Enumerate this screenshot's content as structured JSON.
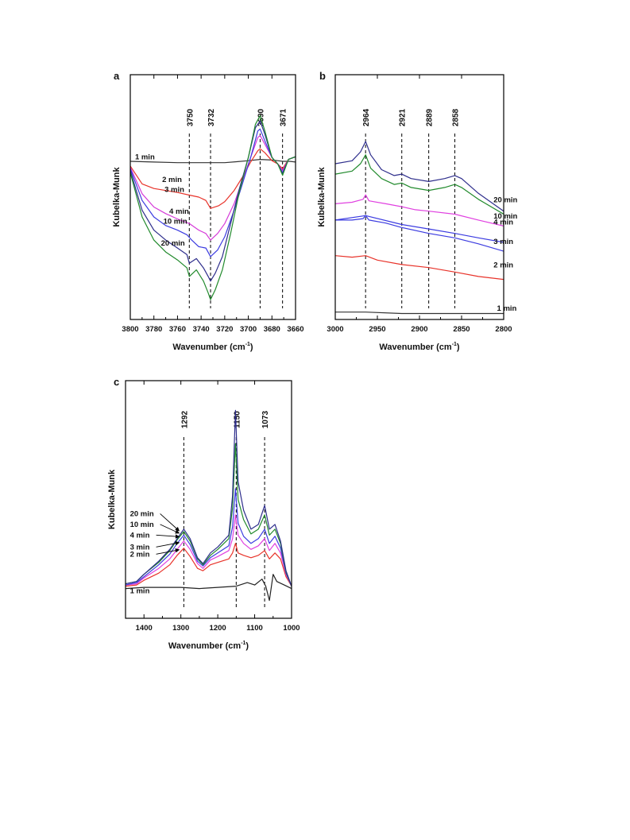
{
  "chart_data": [
    {
      "panel": "a",
      "type": "line",
      "xlabel": "Wavenumber (cm",
      "xlabel_sup": "-1",
      "xlabel_end": ")",
      "ylabel": "Kubelka-Munk",
      "xlim": [
        3800,
        3660
      ],
      "xticks": [
        3800,
        3780,
        3760,
        3740,
        3720,
        3700,
        3680,
        3660
      ],
      "yticks_shown": false,
      "ref_lines": [
        {
          "x": 3750,
          "label": "3750"
        },
        {
          "x": 3732,
          "label": "3732"
        },
        {
          "x": 3690,
          "label": "3690"
        },
        {
          "x": 3671,
          "label": "3671"
        }
      ],
      "series": [
        {
          "name": "1 min",
          "color": "#333333",
          "label_pos": [
            3796,
            0.02
          ],
          "x": [
            3800,
            3780,
            3760,
            3740,
            3720,
            3710,
            3700,
            3690,
            3680,
            3675,
            3671,
            3665,
            3660
          ],
          "y": [
            -0.01,
            -0.02,
            -0.03,
            -0.03,
            -0.03,
            -0.015,
            0.0,
            0.02,
            0.01,
            0.0,
            -0.01,
            -0.01,
            -0.02
          ]
        },
        {
          "name": "2 min",
          "color": "#e8332a",
          "label_pos": [
            3773,
            -0.32
          ],
          "x": [
            3800,
            3790,
            3780,
            3770,
            3760,
            3750,
            3742,
            3736,
            3732,
            3725,
            3720,
            3712,
            3705,
            3698,
            3692,
            3690,
            3686,
            3680,
            3675,
            3671,
            3666,
            3660
          ],
          "y": [
            -0.08,
            -0.35,
            -0.42,
            -0.45,
            -0.48,
            -0.52,
            -0.55,
            -0.6,
            -0.72,
            -0.68,
            -0.62,
            -0.45,
            -0.25,
            -0.02,
            0.15,
            0.18,
            0.12,
            0.0,
            -0.05,
            -0.12,
            0.02,
            0.06
          ]
        },
        {
          "name": "3 min",
          "color": "#d53ad8",
          "label_pos": [
            3771,
            -0.47
          ],
          "x": [
            3800,
            3790,
            3780,
            3770,
            3760,
            3750,
            3742,
            3736,
            3732,
            3726,
            3720,
            3712,
            3705,
            3698,
            3692,
            3690,
            3686,
            3680,
            3675,
            3671,
            3666,
            3660
          ],
          "y": [
            -0.1,
            -0.5,
            -0.7,
            -0.8,
            -0.88,
            -0.95,
            -1.05,
            -1.1,
            -1.2,
            -1.1,
            -0.95,
            -0.65,
            -0.3,
            0.05,
            0.35,
            0.38,
            0.25,
            0.05,
            -0.05,
            -0.15,
            0.02,
            0.06
          ]
        },
        {
          "name": "4 min",
          "color": "#3b3be0",
          "label_pos": [
            3767,
            -0.8
          ],
          "x": [
            3800,
            3790,
            3780,
            3770,
            3760,
            3752,
            3748,
            3742,
            3736,
            3732,
            3726,
            3720,
            3712,
            3705,
            3698,
            3692,
            3690,
            3686,
            3680,
            3675,
            3671,
            3666,
            3660
          ],
          "y": [
            -0.12,
            -0.6,
            -0.85,
            -0.98,
            -1.05,
            -1.12,
            -1.2,
            -1.3,
            -1.32,
            -1.45,
            -1.35,
            -1.15,
            -0.75,
            -0.35,
            0.05,
            0.45,
            0.48,
            0.3,
            0.05,
            -0.05,
            -0.18,
            0.02,
            0.06
          ]
        },
        {
          "name": "10 min",
          "color": "#2e2e8c",
          "label_pos": [
            3772,
            -0.95
          ],
          "x": [
            3800,
            3790,
            3780,
            3770,
            3760,
            3752,
            3750,
            3744,
            3738,
            3734,
            3732,
            3728,
            3722,
            3715,
            3708,
            3700,
            3694,
            3690,
            3686,
            3680,
            3675,
            3671,
            3666,
            3660
          ],
          "y": [
            -0.15,
            -0.75,
            -1.05,
            -1.2,
            -1.32,
            -1.42,
            -1.55,
            -1.48,
            -1.62,
            -1.75,
            -1.82,
            -1.7,
            -1.45,
            -0.95,
            -0.45,
            0.05,
            0.5,
            0.6,
            0.4,
            0.05,
            -0.05,
            -0.2,
            0.02,
            0.06
          ]
        },
        {
          "name": "20 min",
          "color": "#218a2c",
          "label_pos": [
            3774,
            -1.28
          ],
          "x": [
            3800,
            3790,
            3780,
            3770,
            3760,
            3752,
            3750,
            3744,
            3738,
            3734,
            3732,
            3728,
            3722,
            3715,
            3708,
            3700,
            3694,
            3690,
            3686,
            3680,
            3675,
            3671,
            3666,
            3660
          ],
          "y": [
            -0.18,
            -0.85,
            -1.2,
            -1.38,
            -1.5,
            -1.62,
            -1.75,
            -1.65,
            -1.82,
            -2.0,
            -2.1,
            -1.95,
            -1.65,
            -1.1,
            -0.5,
            0.05,
            0.55,
            0.68,
            0.45,
            0.05,
            -0.05,
            -0.22,
            0.02,
            0.06
          ]
        }
      ]
    },
    {
      "panel": "b",
      "type": "line",
      "xlabel": "Wavenumber (cm",
      "xlabel_sup": "-1",
      "xlabel_end": ")",
      "ylabel": "Kubelka-Munk",
      "xlim": [
        3000,
        2800
      ],
      "xticks": [
        3000,
        2950,
        2900,
        2850,
        2800
      ],
      "yticks_shown": false,
      "ref_lines": [
        {
          "x": 2964,
          "label": "2964"
        },
        {
          "x": 2921,
          "label": "2921"
        },
        {
          "x": 2889,
          "label": "2889"
        },
        {
          "x": 2858,
          "label": "2858"
        }
      ],
      "series": [
        {
          "name": "1 min",
          "color": "#333333",
          "label_pos": [
            2808,
            0.01
          ],
          "x": [
            3000,
            2964,
            2921,
            2889,
            2858,
            2800
          ],
          "y": [
            0.0,
            0.0,
            -0.01,
            -0.01,
            -0.01,
            -0.01
          ]
        },
        {
          "name": "2 min",
          "color": "#e8332a",
          "label_pos": [
            2812,
            0.3
          ],
          "x": [
            3000,
            2980,
            2964,
            2950,
            2921,
            2889,
            2858,
            2830,
            2800
          ],
          "y": [
            0.38,
            0.37,
            0.38,
            0.35,
            0.32,
            0.3,
            0.27,
            0.24,
            0.22
          ]
        },
        {
          "name": "3 min",
          "color": "#3b3be0",
          "label_pos": [
            2812,
            0.46
          ],
          "x": [
            3000,
            2980,
            2967,
            2964,
            2960,
            2940,
            2921,
            2889,
            2858,
            2830,
            2800
          ],
          "y": [
            0.62,
            0.62,
            0.63,
            0.65,
            0.62,
            0.6,
            0.57,
            0.53,
            0.5,
            0.46,
            0.41
          ]
        },
        {
          "name": "4 min",
          "color": "#3b3be0",
          "label_pos": [
            2812,
            0.59
          ],
          "x": [
            3000,
            2964,
            2921,
            2889,
            2858,
            2830,
            2800
          ],
          "y": [
            0.62,
            0.65,
            0.59,
            0.56,
            0.53,
            0.5,
            0.47
          ]
        },
        {
          "name": "10 min",
          "color": "#e040e0",
          "label_pos": [
            2812,
            0.63
          ],
          "x": [
            3000,
            2980,
            2967,
            2964,
            2960,
            2940,
            2921,
            2905,
            2889,
            2858,
            2830,
            2800
          ],
          "y": [
            0.73,
            0.74,
            0.76,
            0.79,
            0.75,
            0.73,
            0.71,
            0.69,
            0.68,
            0.66,
            0.62,
            0.58
          ]
        },
        {
          "name": "20 min",
          "color": "#2e2e8c",
          "label_pos": [
            2812,
            0.74
          ],
          "x": [
            3000,
            2980,
            2970,
            2964,
            2958,
            2945,
            2930,
            2921,
            2910,
            2889,
            2870,
            2858,
            2850,
            2830,
            2800
          ],
          "y": [
            1.0,
            1.02,
            1.08,
            1.15,
            1.06,
            0.96,
            0.92,
            0.93,
            0.9,
            0.88,
            0.9,
            0.92,
            0.9,
            0.8,
            0.68
          ]
        },
        {
          "name": "",
          "color": "#218a2c",
          "x": [
            3000,
            2980,
            2970,
            2964,
            2958,
            2945,
            2930,
            2921,
            2910,
            2889,
            2870,
            2858,
            2850,
            2830,
            2800
          ],
          "y": [
            0.93,
            0.95,
            1.0,
            1.06,
            0.97,
            0.9,
            0.86,
            0.87,
            0.84,
            0.82,
            0.84,
            0.86,
            0.84,
            0.76,
            0.66
          ]
        }
      ]
    },
    {
      "panel": "c",
      "type": "line",
      "xlabel": "Wavenumber (cm",
      "xlabel_sup": "-1",
      "xlabel_end": ")",
      "ylabel": "Kubelka-Munk",
      "xlim": [
        1450,
        1000
      ],
      "xticks": [
        1400,
        1300,
        1200,
        1100,
        1000
      ],
      "yticks_shown": false,
      "ref_lines": [
        {
          "x": 1292,
          "label": "1292"
        },
        {
          "x": 1150,
          "label": "1150"
        },
        {
          "x": 1073,
          "label": "1073"
        }
      ],
      "series": [
        {
          "name": "1 min",
          "color": "#222222",
          "label_pos": [
            1438,
            -0.04
          ],
          "x": [
            1450,
            1400,
            1350,
            1300,
            1250,
            1200,
            1150,
            1120,
            1100,
            1080,
            1070,
            1060,
            1050,
            1040,
            1020,
            1000
          ],
          "y": [
            0.0,
            0.01,
            0.01,
            0.01,
            0.0,
            0.01,
            0.02,
            0.05,
            0.03,
            0.08,
            0.02,
            -0.1,
            0.12,
            0.06,
            0.03,
            0.0
          ]
        },
        {
          "name": "2 min",
          "color": "#e8332a",
          "label_pos": [
            1438,
            0.27
          ],
          "x": [
            1450,
            1420,
            1400,
            1360,
            1330,
            1310,
            1292,
            1275,
            1255,
            1240,
            1220,
            1200,
            1170,
            1160,
            1152,
            1145,
            1130,
            1110,
            1090,
            1073,
            1060,
            1045,
            1030,
            1015,
            1000
          ],
          "y": [
            0.02,
            0.03,
            0.07,
            0.13,
            0.2,
            0.28,
            0.34,
            0.27,
            0.17,
            0.15,
            0.2,
            0.22,
            0.25,
            0.3,
            0.38,
            0.3,
            0.28,
            0.26,
            0.28,
            0.32,
            0.25,
            0.3,
            0.25,
            0.1,
            0.02
          ]
        },
        {
          "name": "3 min",
          "color": "#e040e0",
          "label_pos": [
            1438,
            0.33
          ],
          "x": [
            1450,
            1420,
            1400,
            1360,
            1330,
            1310,
            1292,
            1275,
            1255,
            1240,
            1220,
            1200,
            1170,
            1160,
            1152,
            1145,
            1130,
            1110,
            1090,
            1073,
            1060,
            1045,
            1030,
            1015,
            1000
          ],
          "y": [
            0.03,
            0.04,
            0.09,
            0.17,
            0.25,
            0.33,
            0.4,
            0.33,
            0.21,
            0.17,
            0.24,
            0.27,
            0.32,
            0.42,
            0.62,
            0.45,
            0.38,
            0.33,
            0.36,
            0.42,
            0.32,
            0.38,
            0.3,
            0.12,
            0.02
          ]
        },
        {
          "name": "4 min",
          "color": "#3b3be0",
          "label_pos": [
            1438,
            0.43
          ],
          "x": [
            1450,
            1420,
            1400,
            1360,
            1330,
            1310,
            1292,
            1275,
            1255,
            1240,
            1220,
            1200,
            1170,
            1160,
            1152,
            1145,
            1130,
            1110,
            1090,
            1073,
            1060,
            1045,
            1030,
            1015,
            1000
          ],
          "y": [
            0.03,
            0.05,
            0.1,
            0.2,
            0.29,
            0.38,
            0.45,
            0.37,
            0.23,
            0.19,
            0.26,
            0.3,
            0.36,
            0.52,
            0.84,
            0.55,
            0.44,
            0.38,
            0.42,
            0.5,
            0.38,
            0.44,
            0.34,
            0.13,
            0.02
          ]
        },
        {
          "name": "10 min",
          "color": "#218a2c",
          "label_pos": [
            1438,
            0.52
          ],
          "x": [
            1450,
            1420,
            1400,
            1360,
            1330,
            1310,
            1292,
            1275,
            1255,
            1240,
            1220,
            1200,
            1170,
            1160,
            1152,
            1145,
            1130,
            1110,
            1090,
            1073,
            1060,
            1045,
            1030,
            1015,
            1000
          ],
          "y": [
            0.04,
            0.06,
            0.12,
            0.22,
            0.32,
            0.41,
            0.48,
            0.4,
            0.25,
            0.2,
            0.28,
            0.33,
            0.42,
            0.68,
            1.22,
            0.75,
            0.58,
            0.46,
            0.5,
            0.62,
            0.45,
            0.5,
            0.38,
            0.14,
            0.02
          ]
        },
        {
          "name": "20 min",
          "color": "#2e2e8c",
          "label_pos": [
            1438,
            0.61
          ],
          "x": [
            1450,
            1420,
            1400,
            1360,
            1330,
            1310,
            1292,
            1275,
            1255,
            1240,
            1220,
            1200,
            1170,
            1160,
            1152,
            1145,
            1130,
            1110,
            1090,
            1073,
            1060,
            1045,
            1030,
            1015,
            1000
          ],
          "y": [
            0.04,
            0.06,
            0.12,
            0.23,
            0.33,
            0.42,
            0.5,
            0.42,
            0.26,
            0.21,
            0.3,
            0.35,
            0.45,
            0.78,
            1.5,
            0.9,
            0.66,
            0.5,
            0.54,
            0.7,
            0.5,
            0.54,
            0.4,
            0.15,
            0.02
          ]
        }
      ]
    }
  ]
}
